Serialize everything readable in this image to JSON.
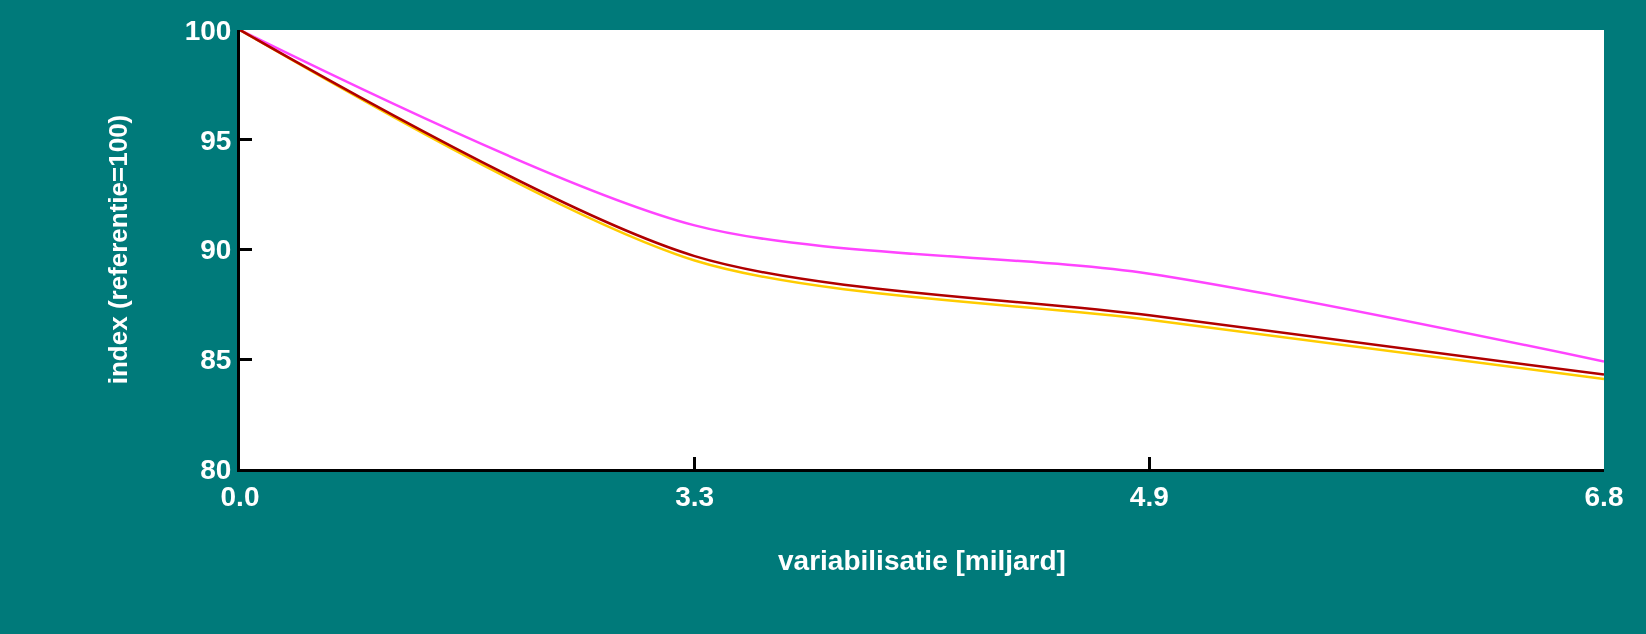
{
  "chart_data": {
    "type": "line",
    "xlabel": "variabilisatie [miljard]",
    "ylabel": "index (referentie=100)",
    "categories": [
      "0.0",
      "3.3",
      "4.9",
      "6.8"
    ],
    "series": [
      {
        "color": "#ff44ff",
        "values": [
          100,
          91.1,
          88.9,
          84.9
        ]
      },
      {
        "color": "#ffcc00",
        "values": [
          100,
          89.5,
          86.8,
          84.1
        ]
      },
      {
        "color": "#b00000",
        "values": [
          100,
          89.7,
          87.0,
          84.3
        ]
      }
    ],
    "ylim": [
      80,
      100
    ],
    "yticks": [
      80,
      85,
      90,
      95,
      100
    ],
    "grid": false,
    "marker": "none",
    "line_style": "solid"
  }
}
